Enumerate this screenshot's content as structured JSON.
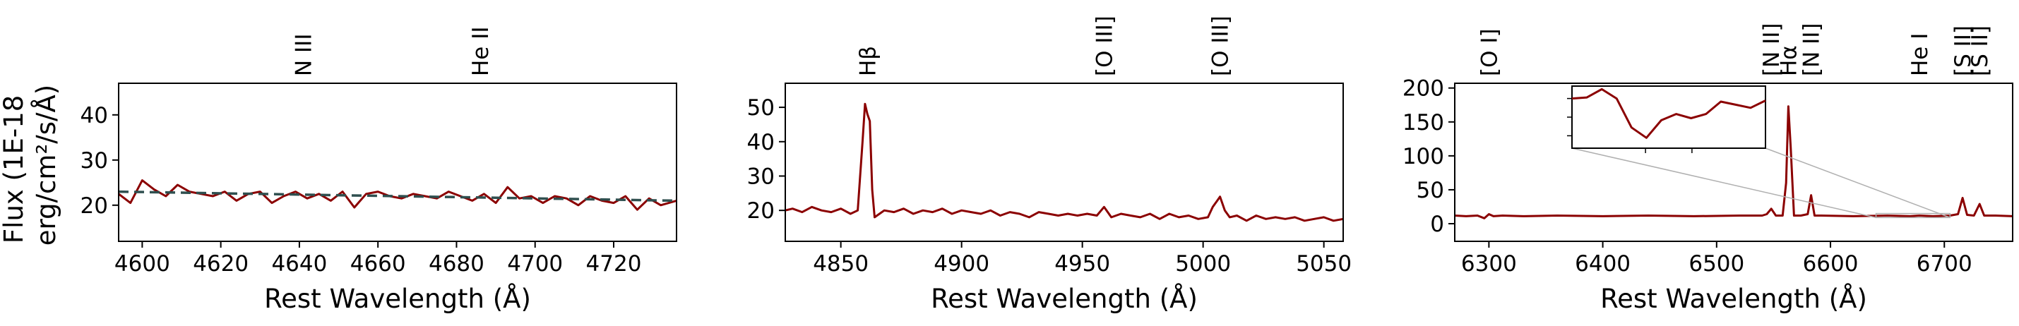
{
  "ylabel_lines": [
    "Flux (1E-18",
    "erg/cm²/s/Å)"
  ],
  "chart_data": [
    {
      "type": "line",
      "xlabel": "Rest Wavelength (Å)",
      "xlim": [
        4594,
        4736
      ],
      "ylim": [
        12,
        47
      ],
      "xticks": [
        4600,
        4620,
        4640,
        4660,
        4680,
        4700,
        4720
      ],
      "yticks": [
        20,
        30,
        40
      ],
      "line_labels": [
        {
          "text": "N III",
          "x": 4641
        },
        {
          "text": "He II",
          "x": 4686
        }
      ],
      "series": [
        {
          "color": "#8b0000",
          "x": [
            4594,
            4597,
            4600,
            4603,
            4606,
            4609,
            4612,
            4615,
            4618,
            4621,
            4624,
            4627,
            4630,
            4633,
            4636,
            4639,
            4642,
            4645,
            4648,
            4651,
            4654,
            4657,
            4660,
            4663,
            4666,
            4669,
            4672,
            4675,
            4678,
            4681,
            4684,
            4687,
            4690,
            4693,
            4696,
            4699,
            4702,
            4705,
            4708,
            4711,
            4714,
            4717,
            4720,
            4723,
            4726,
            4729,
            4732,
            4736
          ],
          "y": [
            22.5,
            20.5,
            25.5,
            23.5,
            22,
            24.5,
            23,
            22.5,
            22,
            23,
            21,
            22.5,
            23,
            20.5,
            22,
            23,
            21.5,
            22.5,
            21,
            23,
            19.5,
            22.5,
            23,
            22,
            21.5,
            22.5,
            22,
            21.5,
            23,
            22,
            21,
            22.5,
            20.5,
            24,
            21.5,
            22,
            20.5,
            22,
            21.5,
            20,
            22,
            21,
            20.5,
            22,
            19,
            21.5,
            20,
            21
          ]
        },
        {
          "color": "#2f4f4f",
          "style": "dashed",
          "x": [
            4594,
            4736
          ],
          "y": [
            23,
            21
          ]
        }
      ]
    },
    {
      "type": "line",
      "xlabel": "Rest Wavelength (Å)",
      "xlim": [
        4827,
        5058
      ],
      "ylim": [
        11,
        57
      ],
      "xticks": [
        4850,
        4900,
        4950,
        5000,
        5050
      ],
      "yticks": [
        20,
        30,
        40,
        50
      ],
      "line_labels": [
        {
          "text": "Hβ",
          "x": 4861
        },
        {
          "text": "[O III]",
          "x": 4959
        },
        {
          "text": "[O III]",
          "x": 5007
        }
      ],
      "series": [
        {
          "color": "#8b0000",
          "x": [
            4827,
            4830,
            4834,
            4838,
            4842,
            4846,
            4850,
            4854,
            4857,
            4859,
            4860,
            4861,
            4862,
            4863,
            4864,
            4866,
            4868,
            4872,
            4876,
            4880,
            4884,
            4888,
            4892,
            4896,
            4900,
            4904,
            4908,
            4912,
            4916,
            4920,
            4924,
            4928,
            4932,
            4936,
            4940,
            4944,
            4948,
            4952,
            4956,
            4959,
            4962,
            4966,
            4970,
            4974,
            4978,
            4982,
            4986,
            4990,
            4994,
            4998,
            5002,
            5004,
            5006,
            5007,
            5009,
            5011,
            5014,
            5018,
            5022,
            5026,
            5030,
            5034,
            5038,
            5042,
            5046,
            5050,
            5054,
            5058
          ],
          "y": [
            20,
            20.5,
            19.5,
            21,
            20,
            19.5,
            20.5,
            19,
            20,
            40,
            51,
            48,
            46,
            26,
            18,
            19,
            20,
            19.5,
            20.5,
            19,
            20,
            19.5,
            20.5,
            19,
            20,
            19.5,
            19,
            20,
            18.5,
            19.5,
            19,
            18,
            19.5,
            19,
            18.5,
            19,
            18.5,
            19,
            18.5,
            21,
            18,
            19,
            18.5,
            18,
            19,
            17.5,
            19,
            18,
            18.5,
            17.5,
            18,
            21,
            23,
            24,
            20,
            18,
            18.5,
            17,
            18.5,
            17.5,
            18,
            17.5,
            18,
            17,
            17.5,
            18,
            17,
            17.5
          ]
        }
      ]
    },
    {
      "type": "line",
      "xlabel": "Rest Wavelength (Å)",
      "xlim": [
        6270,
        6760
      ],
      "ylim": [
        -26,
        207
      ],
      "xticks": [
        6300,
        6400,
        6500,
        6600,
        6700
      ],
      "yticks": [
        0,
        50,
        100,
        150,
        200
      ],
      "line_labels": [
        {
          "text": "[O I]",
          "x": 6300
        },
        {
          "text": "[N II]",
          "x": 6548
        },
        {
          "text": "Hα",
          "x": 6563
        },
        {
          "text": "[N II]",
          "x": 6583
        },
        {
          "text": "He I",
          "x": 6678
        },
        {
          "text": "[S II]",
          "x": 6716
        },
        {
          "text": "[S II]",
          "x": 6731
        }
      ],
      "series": [
        {
          "color": "#8b0000",
          "x": [
            6270,
            6280,
            6290,
            6296,
            6300,
            6304,
            6312,
            6330,
            6360,
            6400,
            6440,
            6480,
            6520,
            6540,
            6544,
            6548,
            6552,
            6558,
            6561,
            6563,
            6565,
            6568,
            6574,
            6580,
            6583,
            6586,
            6592,
            6620,
            6650,
            6670,
            6678,
            6690,
            6705,
            6712,
            6716,
            6720,
            6726,
            6731,
            6735,
            6745,
            6760
          ],
          "y": [
            12,
            11,
            12,
            8,
            14,
            11,
            12,
            11,
            12,
            11,
            12,
            11,
            12,
            12,
            14,
            22,
            12,
            12,
            60,
            173,
            115,
            12,
            12,
            14,
            42,
            12,
            12,
            11,
            12,
            11,
            12,
            11,
            12,
            14,
            38,
            13,
            12,
            29,
            12,
            12,
            11
          ]
        }
      ],
      "inset": {
        "source_xlim": [
          6640,
          6705
        ],
        "source_ylim": [
          9,
          15
        ],
        "series": {
          "color": "#8b0000",
          "x": [
            6640,
            6645,
            6650,
            6655,
            6660,
            6665,
            6670,
            6675,
            6680,
            6685,
            6690,
            6695,
            6700,
            6705
          ],
          "y": [
            13.8,
            13.9,
            14.7,
            13.8,
            11.0,
            10.0,
            11.7,
            12.3,
            11.9,
            12.3,
            13.5,
            13.2,
            12.9,
            13.6
          ]
        }
      }
    }
  ]
}
